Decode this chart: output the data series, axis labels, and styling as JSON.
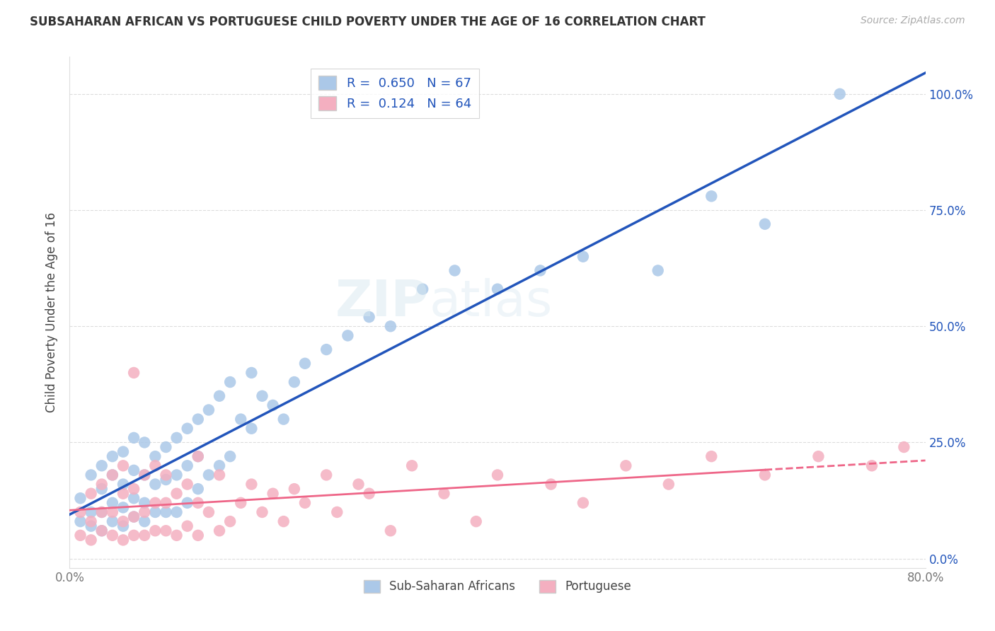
{
  "title": "SUBSAHARAN AFRICAN VS PORTUGUESE CHILD POVERTY UNDER THE AGE OF 16 CORRELATION CHART",
  "source": "Source: ZipAtlas.com",
  "ylabel": "Child Poverty Under the Age of 16",
  "xlim": [
    0.0,
    0.8
  ],
  "ylim": [
    -0.02,
    1.08
  ],
  "ytick_values": [
    0.0,
    0.25,
    0.5,
    0.75,
    1.0
  ],
  "blue_R": 0.65,
  "blue_N": 67,
  "pink_R": 0.124,
  "pink_N": 64,
  "blue_color": "#abc8e8",
  "pink_color": "#f4afc0",
  "blue_line_color": "#2255bb",
  "pink_line_color": "#ee6688",
  "legend_label_blue": "Sub-Saharan Africans",
  "legend_label_pink": "Portuguese",
  "blue_scatter_x": [
    0.01,
    0.01,
    0.02,
    0.02,
    0.02,
    0.03,
    0.03,
    0.03,
    0.03,
    0.04,
    0.04,
    0.04,
    0.04,
    0.05,
    0.05,
    0.05,
    0.05,
    0.06,
    0.06,
    0.06,
    0.06,
    0.07,
    0.07,
    0.07,
    0.07,
    0.08,
    0.08,
    0.08,
    0.09,
    0.09,
    0.09,
    0.1,
    0.1,
    0.1,
    0.11,
    0.11,
    0.11,
    0.12,
    0.12,
    0.12,
    0.13,
    0.13,
    0.14,
    0.14,
    0.15,
    0.15,
    0.16,
    0.17,
    0.17,
    0.18,
    0.19,
    0.2,
    0.21,
    0.22,
    0.24,
    0.26,
    0.28,
    0.3,
    0.33,
    0.36,
    0.4,
    0.44,
    0.48,
    0.55,
    0.6,
    0.65,
    0.72
  ],
  "blue_scatter_y": [
    0.08,
    0.13,
    0.07,
    0.1,
    0.18,
    0.06,
    0.1,
    0.15,
    0.2,
    0.08,
    0.12,
    0.18,
    0.22,
    0.07,
    0.11,
    0.16,
    0.23,
    0.09,
    0.13,
    0.19,
    0.26,
    0.08,
    0.12,
    0.18,
    0.25,
    0.1,
    0.16,
    0.22,
    0.1,
    0.17,
    0.24,
    0.1,
    0.18,
    0.26,
    0.12,
    0.2,
    0.28,
    0.15,
    0.22,
    0.3,
    0.18,
    0.32,
    0.2,
    0.35,
    0.22,
    0.38,
    0.3,
    0.28,
    0.4,
    0.35,
    0.33,
    0.3,
    0.38,
    0.42,
    0.45,
    0.48,
    0.52,
    0.5,
    0.58,
    0.62,
    0.58,
    0.62,
    0.65,
    0.62,
    0.78,
    0.72,
    1.0
  ],
  "pink_scatter_x": [
    0.01,
    0.01,
    0.02,
    0.02,
    0.02,
    0.03,
    0.03,
    0.03,
    0.04,
    0.04,
    0.04,
    0.05,
    0.05,
    0.05,
    0.05,
    0.06,
    0.06,
    0.06,
    0.06,
    0.07,
    0.07,
    0.07,
    0.08,
    0.08,
    0.08,
    0.09,
    0.09,
    0.09,
    0.1,
    0.1,
    0.11,
    0.11,
    0.12,
    0.12,
    0.12,
    0.13,
    0.14,
    0.14,
    0.15,
    0.16,
    0.17,
    0.18,
    0.19,
    0.2,
    0.21,
    0.22,
    0.24,
    0.25,
    0.27,
    0.28,
    0.3,
    0.32,
    0.35,
    0.38,
    0.4,
    0.45,
    0.48,
    0.52,
    0.56,
    0.6,
    0.65,
    0.7,
    0.75,
    0.78
  ],
  "pink_scatter_y": [
    0.05,
    0.1,
    0.04,
    0.08,
    0.14,
    0.06,
    0.1,
    0.16,
    0.05,
    0.1,
    0.18,
    0.04,
    0.08,
    0.14,
    0.2,
    0.05,
    0.09,
    0.15,
    0.4,
    0.05,
    0.1,
    0.18,
    0.06,
    0.12,
    0.2,
    0.06,
    0.12,
    0.18,
    0.05,
    0.14,
    0.07,
    0.16,
    0.05,
    0.12,
    0.22,
    0.1,
    0.06,
    0.18,
    0.08,
    0.12,
    0.16,
    0.1,
    0.14,
    0.08,
    0.15,
    0.12,
    0.18,
    0.1,
    0.16,
    0.14,
    0.06,
    0.2,
    0.14,
    0.08,
    0.18,
    0.16,
    0.12,
    0.2,
    0.16,
    0.22,
    0.18,
    0.22,
    0.2,
    0.24
  ]
}
